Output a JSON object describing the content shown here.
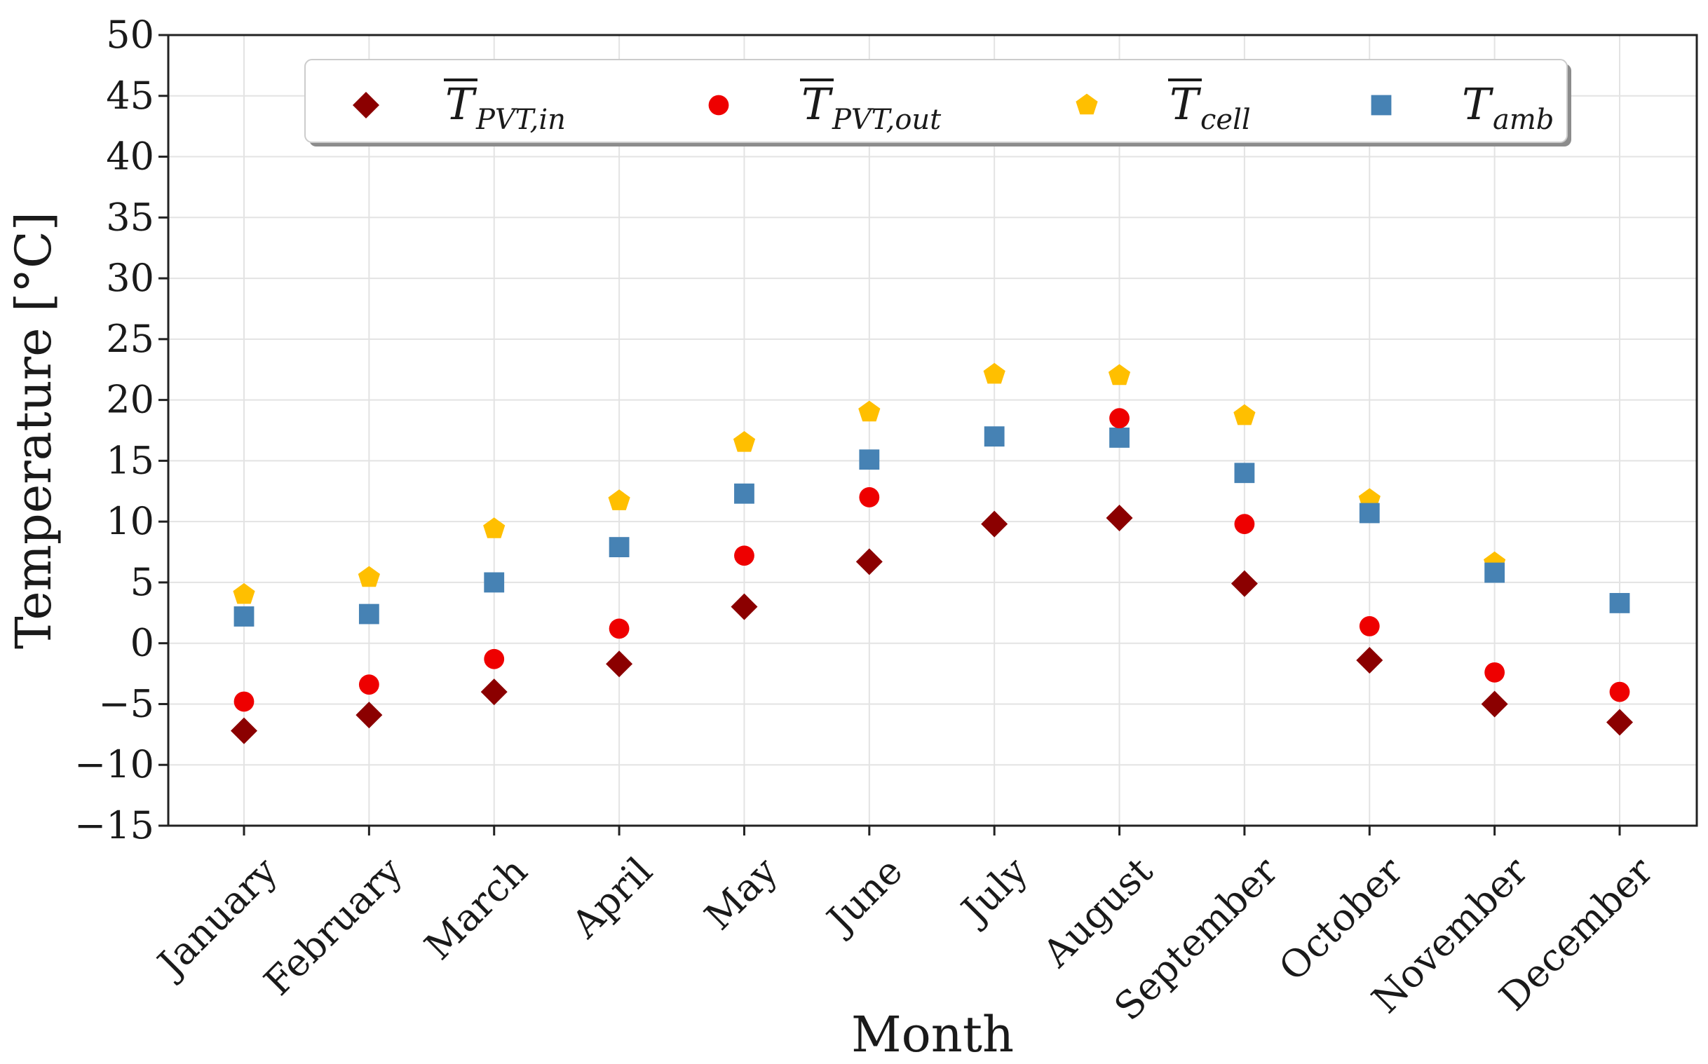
{
  "chart_data": {
    "type": "scatter",
    "title": "",
    "xlabel": "Month",
    "ylabel": "Temperature [°C]",
    "ylim": [
      -15,
      50
    ],
    "yticks": [
      -15,
      -10,
      -5,
      0,
      5,
      10,
      15,
      20,
      25,
      30,
      35,
      40,
      45,
      50
    ],
    "ytick_labels": [
      "−15",
      "−10",
      "−5",
      "0",
      "5",
      "10",
      "15",
      "20",
      "25",
      "30",
      "35",
      "40",
      "45",
      "50"
    ],
    "grid": true,
    "legend_position": "top",
    "categories": [
      "January",
      "February",
      "March",
      "April",
      "May",
      "June",
      "July",
      "August",
      "September",
      "October",
      "November",
      "December"
    ],
    "series": [
      {
        "name": "T_PVT,in",
        "legend_main": "T",
        "legend_sub": "PVT,in",
        "overline": true,
        "marker": "diamond",
        "color": "#8b0000",
        "values": [
          -7.2,
          -5.9,
          -4.0,
          -1.7,
          3.0,
          6.7,
          9.8,
          10.3,
          4.9,
          -1.4,
          -5.0,
          -6.5
        ]
      },
      {
        "name": "T_PVT,out",
        "legend_main": "T",
        "legend_sub": "PVT,out",
        "overline": true,
        "marker": "circle",
        "color": "#ee0000",
        "values": [
          -4.8,
          -3.4,
          -1.3,
          1.2,
          7.2,
          12.0,
          null,
          18.5,
          9.8,
          1.4,
          -2.4,
          -4.0
        ]
      },
      {
        "name": "T_cell",
        "legend_main": "T",
        "legend_sub": "cell",
        "overline": true,
        "marker": "pentagon",
        "color": "#ffbf00",
        "values": [
          4.0,
          5.4,
          9.4,
          11.7,
          16.5,
          19.0,
          22.1,
          22.0,
          18.7,
          11.8,
          6.6,
          null
        ]
      },
      {
        "name": "T_amb",
        "legend_main": "T",
        "legend_sub": "amb",
        "overline": false,
        "marker": "square",
        "color": "#4682b4",
        "values": [
          2.2,
          2.4,
          5.0,
          7.9,
          12.3,
          15.1,
          17.0,
          16.9,
          14.0,
          10.7,
          5.8,
          3.3
        ]
      }
    ]
  }
}
